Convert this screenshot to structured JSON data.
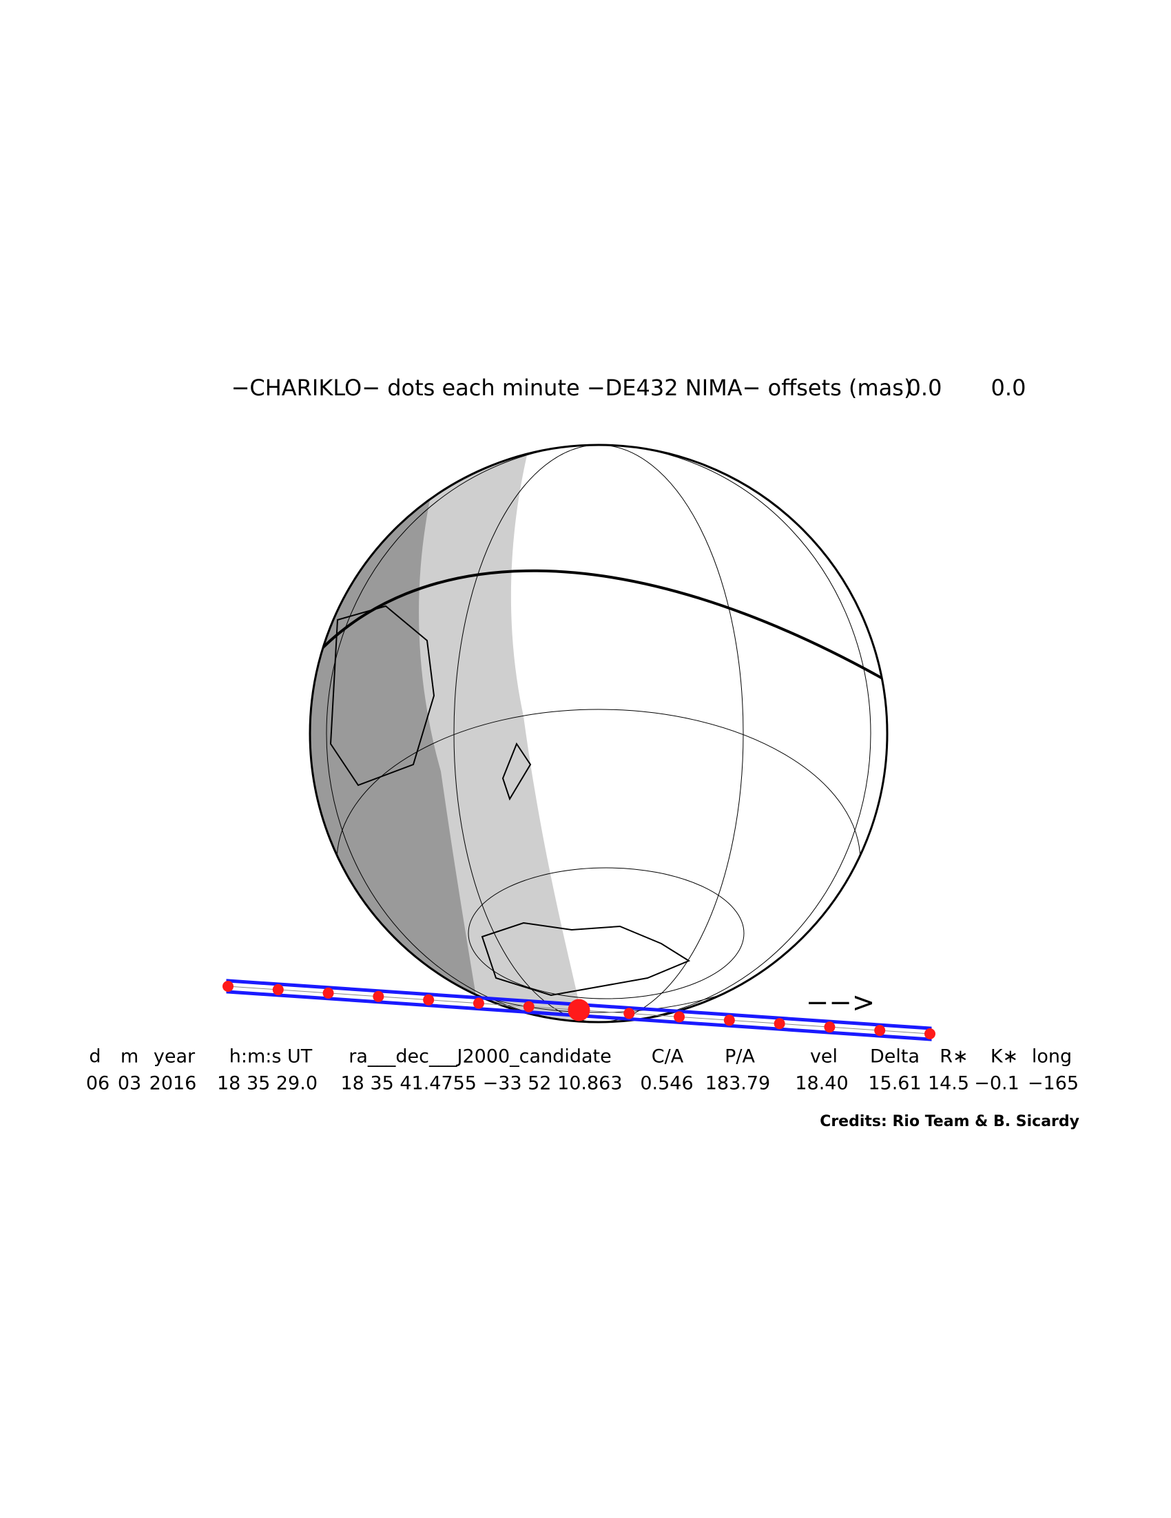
{
  "header": {
    "title": "−CHARIKLO− dots each minute −DE432 NIMA− offsets (mas)",
    "offsets": [
      "0.0",
      "0.0"
    ]
  },
  "direction": "−−>",
  "table": {
    "columns": [
      "d",
      "m",
      "year",
      "h:m:s UT",
      "ra___dec___J2000_candidate",
      "C/A",
      "P/A",
      "vel",
      "Delta",
      "R∗",
      "K∗",
      "long"
    ],
    "values": [
      "06",
      "03",
      "2016",
      "18 35 29.0",
      "18 35 41.4755 −33 52 10.863",
      "0.546",
      "183.79",
      "18.40",
      "15.61",
      "14.5",
      "−0.1",
      "−165"
    ]
  },
  "credits": "Credits: Rio Team & B. Sicardy"
}
